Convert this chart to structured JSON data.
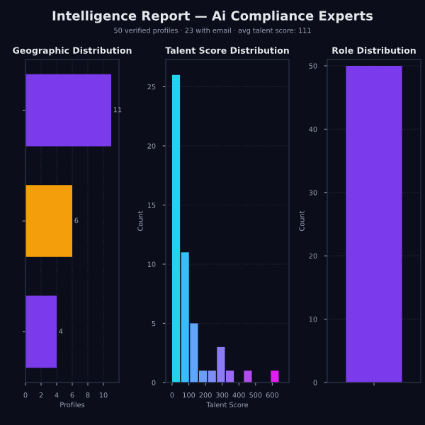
{
  "chart_data": [
    {
      "type": "other",
      "title": "Intelligence Report — Ai Compliance Experts",
      "subtitle": "50 verified profiles · 23 with email · avg talent score: 111"
    },
    {
      "type": "bar",
      "title": "Geographic Distribution",
      "orientation": "horizontal",
      "categories": [
        null,
        null,
        null
      ],
      "values": [
        11,
        6,
        4
      ],
      "colors": [
        "#7c3aed",
        "#f59e0b",
        "#7c3aed"
      ],
      "data_labels": true,
      "xlabel": "Profiles",
      "xlim": [
        0,
        12
      ],
      "xticks": [
        0,
        2,
        4,
        6,
        8,
        10
      ],
      "grid": "x"
    },
    {
      "type": "histogram",
      "title": "Talent Score Distribution",
      "bins": [
        0,
        53.75,
        107.5,
        161.25,
        215,
        268.75,
        322.5,
        376.25,
        430,
        483.75,
        537.5,
        591.25,
        645
      ],
      "values": [
        26,
        11,
        5,
        1,
        1,
        3,
        1,
        0,
        1,
        0,
        0,
        1
      ],
      "colors": [
        "#22d3ee",
        "#38bdf8",
        "#60a5fa",
        "#6b9ef8",
        "#7c8ff8",
        "#8b7cf6",
        "#9a6cf5",
        "#a855f7",
        "#b04cf0",
        "#c03ff0",
        "#d02ef0",
        "#e11df0"
      ],
      "xlabel": "Talent Score",
      "ylabel": "Count",
      "xlim": [
        -38,
        700
      ],
      "xticks": [
        0,
        100,
        200,
        300,
        400,
        500,
        600
      ],
      "ylim": [
        0,
        27.3
      ],
      "yticks": [
        0,
        5,
        10,
        15,
        20,
        25
      ],
      "grid": "y"
    },
    {
      "type": "bar",
      "title": "Role Distribution",
      "categories": [
        null
      ],
      "values": [
        50
      ],
      "colors": [
        "#7c3aed"
      ],
      "ylabel": "Count",
      "ylim": [
        0,
        51
      ],
      "yticks": [
        0,
        10,
        20,
        30,
        40,
        50
      ],
      "grid": "y"
    }
  ]
}
